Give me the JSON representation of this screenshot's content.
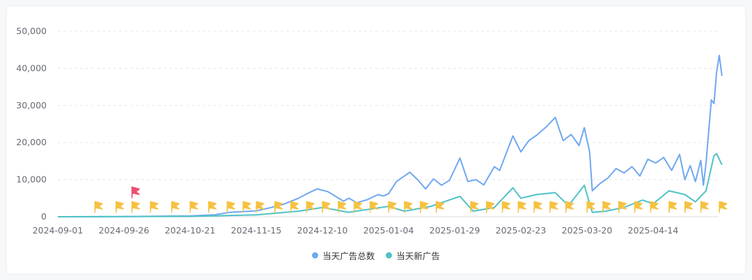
{
  "chart_data": {
    "type": "line",
    "title": "",
    "xlabel": "",
    "ylabel": "",
    "ylim": [
      0,
      50000
    ],
    "y_ticks": [
      "0",
      "10,000",
      "20,000",
      "30,000",
      "40,000",
      "50,000"
    ],
    "x_ticks": [
      "2024-09-01",
      "2024-09-26",
      "2024-10-21",
      "2024-11-15",
      "2024-12-10",
      "2025-01-04",
      "2025-01-29",
      "2025-02-23",
      "2025-03-20",
      "2025-04-14"
    ],
    "x_range": [
      "2024-09-01",
      "2025-05-09"
    ],
    "grid": "horizontal dashed",
    "legend_position": "bottom-center",
    "series": [
      {
        "name": "当天广告总数",
        "color": "#6fa8f0",
        "points": [
          [
            "2024-09-01",
            0
          ],
          [
            "2024-09-26",
            50
          ],
          [
            "2024-10-21",
            250
          ],
          [
            "2024-10-30",
            500
          ],
          [
            "2024-11-05",
            1200
          ],
          [
            "2024-11-15",
            1600
          ],
          [
            "2024-11-20",
            2400
          ],
          [
            "2024-11-25",
            3300
          ],
          [
            "2024-12-01",
            5000
          ],
          [
            "2024-12-05",
            6500
          ],
          [
            "2024-12-08",
            7500
          ],
          [
            "2024-12-12",
            6800
          ],
          [
            "2024-12-15",
            5500
          ],
          [
            "2024-12-18",
            4200
          ],
          [
            "2024-12-20",
            5000
          ],
          [
            "2024-12-23",
            3800
          ],
          [
            "2024-12-27",
            4600
          ],
          [
            "2024-12-31",
            6000
          ],
          [
            "2025-01-02",
            5600
          ],
          [
            "2025-01-04",
            6200
          ],
          [
            "2025-01-07",
            9500
          ],
          [
            "2025-01-12",
            12000
          ],
          [
            "2025-01-15",
            10000
          ],
          [
            "2025-01-18",
            7500
          ],
          [
            "2025-01-21",
            10200
          ],
          [
            "2025-01-24",
            8500
          ],
          [
            "2025-01-27",
            9800
          ],
          [
            "2025-01-31",
            15800
          ],
          [
            "2025-02-03",
            9500
          ],
          [
            "2025-02-06",
            10000
          ],
          [
            "2025-02-09",
            8600
          ],
          [
            "2025-02-13",
            13500
          ],
          [
            "2025-02-15",
            12500
          ],
          [
            "2025-02-20",
            21800
          ],
          [
            "2025-02-23",
            17500
          ],
          [
            "2025-02-26",
            20500
          ],
          [
            "2025-03-01",
            22000
          ],
          [
            "2025-03-05",
            24500
          ],
          [
            "2025-03-08",
            26800
          ],
          [
            "2025-03-11",
            20500
          ],
          [
            "2025-03-14",
            22200
          ],
          [
            "2025-03-17",
            19200
          ],
          [
            "2025-03-19",
            24000
          ],
          [
            "2025-03-21",
            17500
          ],
          [
            "2025-03-22",
            7000
          ],
          [
            "2025-03-25",
            9000
          ],
          [
            "2025-03-28",
            10500
          ],
          [
            "2025-03-31",
            13000
          ],
          [
            "2025-04-03",
            11800
          ],
          [
            "2025-04-06",
            13500
          ],
          [
            "2025-04-09",
            11000
          ],
          [
            "2025-04-12",
            15500
          ],
          [
            "2025-04-15",
            14500
          ],
          [
            "2025-04-18",
            16000
          ],
          [
            "2025-04-21",
            12500
          ],
          [
            "2025-04-24",
            16800
          ],
          [
            "2025-04-26",
            10000
          ],
          [
            "2025-04-28",
            13800
          ],
          [
            "2025-04-30",
            9500
          ],
          [
            "2025-05-02",
            15200
          ],
          [
            "2025-05-03",
            8500
          ],
          [
            "2025-05-04",
            14500
          ],
          [
            "2025-05-06",
            31500
          ],
          [
            "2025-05-07",
            30500
          ],
          [
            "2025-05-08",
            39000
          ],
          [
            "2025-05-09",
            43500
          ],
          [
            "2025-05-10",
            38000
          ]
        ]
      },
      {
        "name": "当天新广告",
        "color": "#4fc2c5",
        "points": [
          [
            "2024-09-01",
            0
          ],
          [
            "2024-10-21",
            100
          ],
          [
            "2024-11-15",
            500
          ],
          [
            "2024-12-01",
            1500
          ],
          [
            "2024-12-10",
            2500
          ],
          [
            "2024-12-20",
            1200
          ],
          [
            "2025-01-04",
            2800
          ],
          [
            "2025-01-10",
            1500
          ],
          [
            "2025-01-20",
            2800
          ],
          [
            "2025-01-31",
            5500
          ],
          [
            "2025-02-05",
            1500
          ],
          [
            "2025-02-13",
            2500
          ],
          [
            "2025-02-20",
            7800
          ],
          [
            "2025-02-23",
            5000
          ],
          [
            "2025-03-01",
            6000
          ],
          [
            "2025-03-08",
            6500
          ],
          [
            "2025-03-13",
            3000
          ],
          [
            "2025-03-19",
            8500
          ],
          [
            "2025-03-22",
            1200
          ],
          [
            "2025-03-27",
            1500
          ],
          [
            "2025-04-03",
            2500
          ],
          [
            "2025-04-10",
            4500
          ],
          [
            "2025-04-14",
            3500
          ],
          [
            "2025-04-20",
            7000
          ],
          [
            "2025-04-26",
            6000
          ],
          [
            "2025-04-30",
            4000
          ],
          [
            "2025-05-04",
            7000
          ],
          [
            "2025-05-07",
            16500
          ],
          [
            "2025-05-08",
            17000
          ],
          [
            "2025-05-10",
            14000
          ]
        ]
      }
    ],
    "markers": {
      "yellow_flag_dates": [
        "2024-09-15",
        "2024-09-23",
        "2024-09-29",
        "2024-10-06",
        "2024-10-14",
        "2024-10-21",
        "2024-10-28",
        "2024-11-04",
        "2024-11-10",
        "2024-11-15",
        "2024-11-22",
        "2024-11-28",
        "2024-12-04",
        "2024-12-10",
        "2024-12-16",
        "2024-12-22",
        "2024-12-28",
        "2025-01-04",
        "2025-01-10",
        "2025-01-16",
        "2025-01-22",
        "2025-02-04",
        "2025-02-10",
        "2025-02-16",
        "2025-02-22",
        "2025-02-28",
        "2025-03-06",
        "2025-03-12",
        "2025-03-20",
        "2025-03-26",
        "2025-04-01",
        "2025-04-07",
        "2025-04-13",
        "2025-04-20",
        "2025-04-26",
        "2025-05-02",
        "2025-05-09"
      ],
      "red_flag_dates": [
        "2024-09-29"
      ]
    }
  },
  "colors": {
    "flag_yellow": "#f5c242",
    "flag_red": "#ee4f72",
    "grid": "#e6e8eb"
  }
}
